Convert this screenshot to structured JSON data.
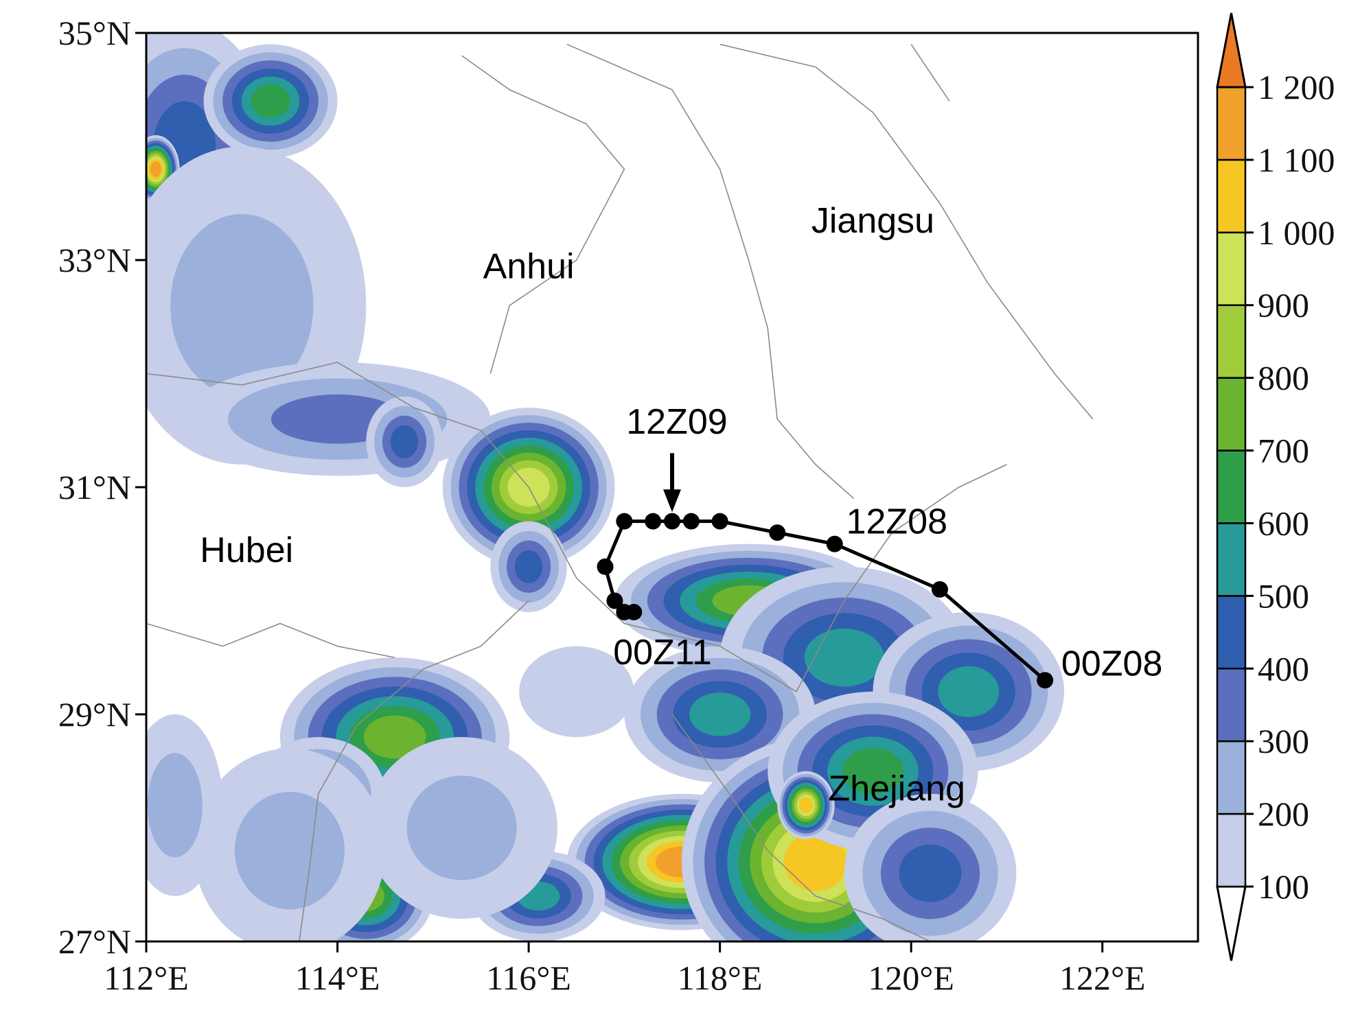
{
  "chart_data": {
    "type": "map",
    "xlim": [
      112,
      123
    ],
    "ylim": [
      27,
      35
    ],
    "xticks": [
      {
        "value": 112,
        "label": "112°E"
      },
      {
        "value": 114,
        "label": "114°E"
      },
      {
        "value": 116,
        "label": "116°E"
      },
      {
        "value": 118,
        "label": "118°E"
      },
      {
        "value": 120,
        "label": "120°E"
      },
      {
        "value": 122,
        "label": "122°E"
      }
    ],
    "yticks": [
      {
        "value": 27,
        "label": "27°N"
      },
      {
        "value": 29,
        "label": "29°N"
      },
      {
        "value": 31,
        "label": "31°N"
      },
      {
        "value": 33,
        "label": "33°N"
      },
      {
        "value": 35,
        "label": "35°N"
      }
    ],
    "regions": [
      "Anhui",
      "Jiangsu",
      "Hubei",
      "Zhejiang"
    ],
    "track": {
      "color": "#000000",
      "x": [
        121.4,
        120.3,
        119.2,
        118.6,
        118.0,
        117.7,
        117.5,
        117.3,
        117.0,
        116.8,
        116.9,
        117.0,
        117.1
      ],
      "y": [
        29.3,
        30.1,
        30.5,
        30.6,
        30.7,
        30.7,
        30.7,
        30.7,
        30.7,
        30.3,
        30.0,
        29.9,
        29.9
      ],
      "labels": [
        "12Z09",
        "12Z08",
        "00Z08",
        "00Z11"
      ]
    },
    "colorbar": {
      "ticks": [
        100,
        200,
        300,
        400,
        500,
        600,
        700,
        800,
        900,
        {
          "value": 1000,
          "label": "1 000"
        },
        {
          "value": 1100,
          "label": "1 100"
        },
        {
          "value": 1200,
          "label": "1 200"
        }
      ],
      "colors": [
        "#c6cee9",
        "#9bb0da",
        "#5c6ebe",
        "#2f5fae",
        "#279a9a",
        "#2f9e4a",
        "#6cb42f",
        "#a0cc3b",
        "#cde159",
        "#f6c624",
        "#f1a02b",
        "#ec7a24"
      ],
      "under_color": "#ffffff"
    }
  }
}
